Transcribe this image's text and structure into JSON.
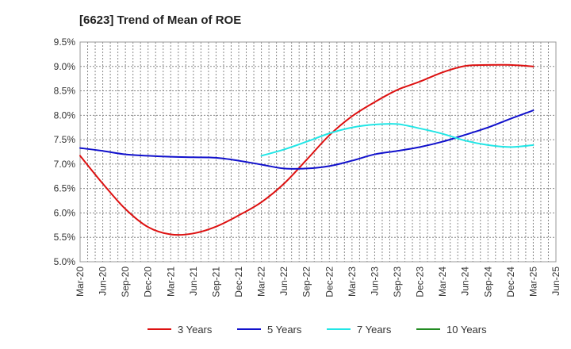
{
  "chart_data": {
    "type": "line",
    "title": "[6623]  Trend of Mean of ROE",
    "xlabel": "",
    "ylabel": "",
    "x": [
      "Mar-20",
      "Jun-20",
      "Sep-20",
      "Dec-20",
      "Mar-21",
      "Jun-21",
      "Sep-21",
      "Dec-21",
      "Mar-22",
      "Jun-22",
      "Sep-22",
      "Dec-22",
      "Mar-23",
      "Jun-23",
      "Sep-23",
      "Dec-23",
      "Mar-24",
      "Jun-24",
      "Sep-24",
      "Dec-24",
      "Mar-25",
      "Jun-25"
    ],
    "ylim": [
      5.0,
      9.5
    ],
    "yticks": [
      "5.0%",
      "5.5%",
      "6.0%",
      "6.5%",
      "7.0%",
      "7.5%",
      "8.0%",
      "8.5%",
      "9.0%",
      "9.5%"
    ],
    "grid": true,
    "legend_position": "bottom",
    "series": [
      {
        "name": "3 Years",
        "color": "#dd1111",
        "values": [
          7.17,
          6.6,
          6.08,
          5.71,
          5.56,
          5.58,
          5.72,
          5.95,
          6.22,
          6.6,
          7.09,
          7.59,
          7.98,
          8.27,
          8.52,
          8.69,
          8.88,
          9.01,
          9.03,
          9.03,
          9.0,
          null
        ]
      },
      {
        "name": "5 Years",
        "color": "#1111cc",
        "values": [
          7.33,
          7.27,
          7.2,
          7.17,
          7.15,
          7.14,
          7.13,
          7.07,
          6.99,
          6.91,
          6.91,
          6.96,
          7.07,
          7.2,
          7.27,
          7.35,
          7.46,
          7.6,
          7.75,
          7.93,
          8.1,
          null
        ]
      },
      {
        "name": "7 Years",
        "color": "#22e6e6",
        "values": [
          null,
          null,
          null,
          null,
          null,
          null,
          null,
          null,
          7.17,
          7.3,
          7.46,
          7.63,
          7.75,
          7.81,
          7.82,
          7.73,
          7.62,
          7.48,
          7.39,
          7.35,
          7.39,
          null
        ]
      },
      {
        "name": "10 Years",
        "color": "#228b22",
        "values": [
          null,
          null,
          null,
          null,
          null,
          null,
          null,
          null,
          null,
          null,
          null,
          null,
          null,
          null,
          null,
          null,
          null,
          null,
          null,
          null,
          null,
          null
        ]
      }
    ]
  }
}
